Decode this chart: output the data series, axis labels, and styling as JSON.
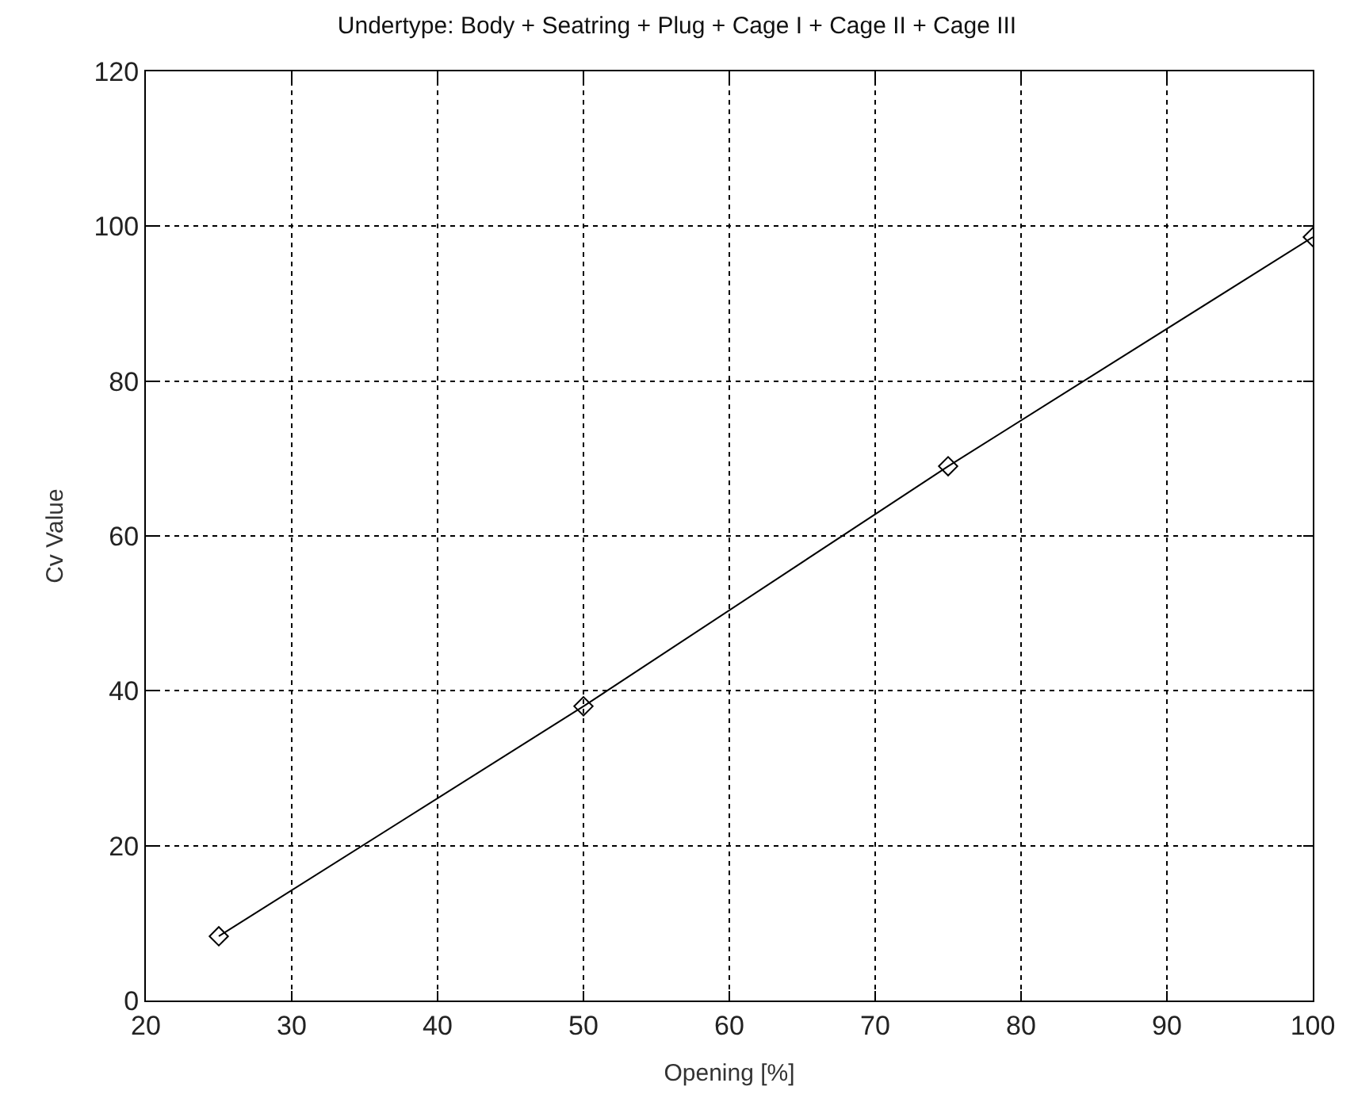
{
  "chart_data": {
    "type": "line",
    "title": "Undertype: Body + Seatring + Plug + Cage I + Cage II + Cage III",
    "xlabel": "Opening [%]",
    "ylabel": "Cv Value",
    "x": [
      25,
      50,
      75,
      100
    ],
    "series": [
      {
        "color": "#000000",
        "values": [
          8.3,
          38.0,
          69.0,
          98.6
        ]
      }
    ],
    "xlim": [
      20,
      100
    ],
    "xticks": [
      20,
      30,
      40,
      50,
      60,
      70,
      80,
      90,
      100
    ],
    "ylim": [
      0,
      120
    ],
    "yticks": [
      0,
      20,
      40,
      60,
      80,
      100,
      120
    ],
    "grid": true,
    "marker": "diamond",
    "line_style": "solid",
    "legend": false
  }
}
